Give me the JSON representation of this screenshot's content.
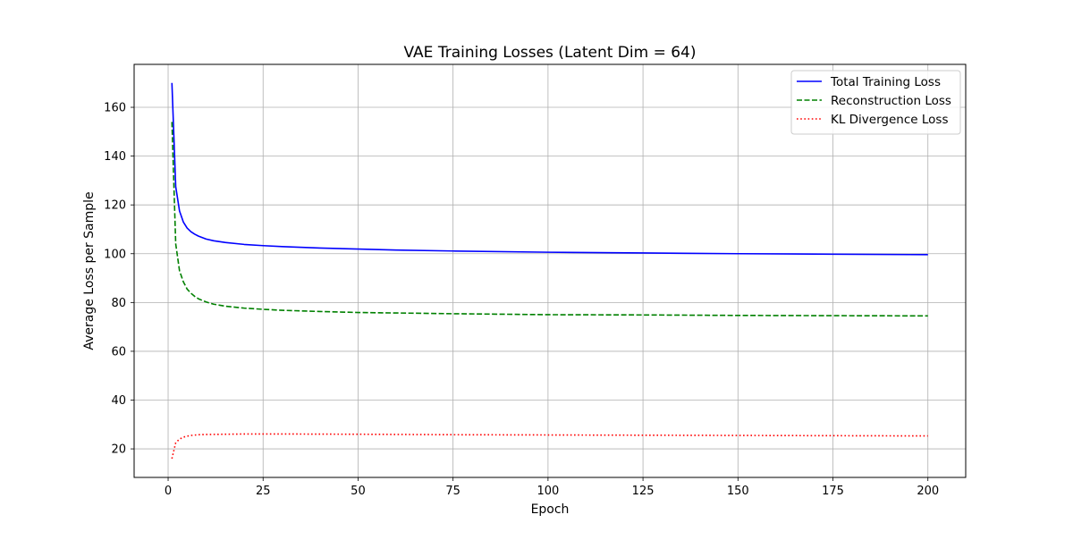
{
  "chart_data": {
    "type": "line",
    "title": "VAE Training Losses (Latent Dim = 64)",
    "xlabel": "Epoch",
    "ylabel": "Average Loss per Sample",
    "xlim": [
      -8.95,
      209.95
    ],
    "ylim": [
      8.3,
      177.6
    ],
    "xticks": [
      0,
      25,
      50,
      75,
      100,
      125,
      150,
      175,
      200
    ],
    "yticks": [
      20,
      40,
      60,
      80,
      100,
      120,
      140,
      160
    ],
    "grid": true,
    "legend_position": "upper right",
    "series": [
      {
        "name": "Total Training Loss",
        "color": "#0000ff",
        "style": "solid",
        "x": [
          1,
          2,
          3,
          4,
          5,
          6,
          7,
          8,
          10,
          12,
          15,
          20,
          25,
          30,
          40,
          50,
          60,
          75,
          100,
          125,
          150,
          175,
          200
        ],
        "y": [
          170.0,
          127.5,
          117.5,
          113.0,
          110.5,
          109.0,
          108.0,
          107.2,
          106.0,
          105.3,
          104.6,
          103.8,
          103.3,
          102.9,
          102.3,
          101.9,
          101.5,
          101.1,
          100.6,
          100.3,
          100.0,
          99.8,
          99.6
        ]
      },
      {
        "name": "Reconstruction Loss",
        "color": "#008000",
        "style": "dashed",
        "x": [
          1,
          2,
          3,
          4,
          5,
          6,
          7,
          8,
          10,
          12,
          15,
          20,
          25,
          30,
          40,
          50,
          60,
          75,
          100,
          125,
          150,
          175,
          200
        ],
        "y": [
          154.0,
          104.0,
          93.0,
          88.5,
          85.5,
          83.8,
          82.5,
          81.5,
          80.2,
          79.3,
          78.5,
          77.7,
          77.2,
          76.8,
          76.3,
          75.9,
          75.7,
          75.4,
          75.0,
          74.9,
          74.7,
          74.6,
          74.5
        ]
      },
      {
        "name": "KL Divergence Loss",
        "color": "#ff0000",
        "style": "dotted",
        "x": [
          1,
          2,
          3,
          4,
          5,
          6,
          8,
          10,
          15,
          20,
          25,
          30,
          50,
          75,
          100,
          125,
          150,
          175,
          200
        ],
        "y": [
          16.0,
          22.5,
          24.0,
          24.8,
          25.2,
          25.5,
          25.8,
          25.9,
          26.0,
          26.1,
          26.1,
          26.1,
          26.0,
          25.8,
          25.7,
          25.6,
          25.5,
          25.4,
          25.3
        ]
      }
    ]
  }
}
